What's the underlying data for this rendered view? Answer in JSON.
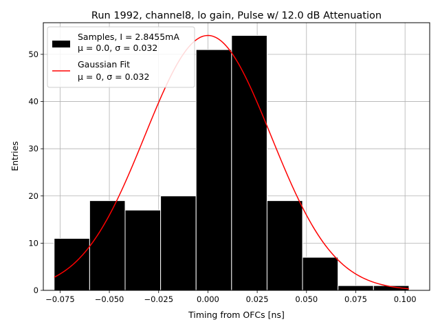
{
  "chart_data": {
    "type": "bar",
    "title": "Run 1992, channel8, lo gain, Pulse w/ 12.0 dB Attenuation",
    "xlabel": "Timing from OFCs [ns]",
    "ylabel": "Entries",
    "xlim": [
      -0.0835,
      0.1125
    ],
    "ylim": [
      0,
      56.7
    ],
    "grid": true,
    "legend_position": "top-left",
    "bin_edges": [
      -0.078,
      -0.06,
      -0.042,
      -0.024,
      -0.006,
      0.012,
      0.03,
      0.048,
      0.066,
      0.084,
      0.102
    ],
    "series": [
      {
        "name": "Samples, I = 2.8455mA",
        "name_line2": "μ = 0.0, σ = 0.032",
        "type": "histogram",
        "values": [
          11,
          19,
          17,
          20,
          51,
          54,
          19,
          7,
          1,
          1
        ],
        "color": "#000000"
      },
      {
        "name": "Gaussian Fit",
        "name_line2": "μ = 0, σ = 0.032",
        "type": "line",
        "mu": 0,
        "sigma": 0.032,
        "peak": 54,
        "color": "#ff0000"
      }
    ],
    "xticks": [
      "−0.075",
      "−0.050",
      "−0.025",
      "0.000",
      "0.025",
      "0.050",
      "0.075",
      "0.100"
    ],
    "xtick_values": [
      -0.075,
      -0.05,
      -0.025,
      0,
      0.025,
      0.05,
      0.075,
      0.1
    ],
    "yticks": [
      "0",
      "10",
      "20",
      "30",
      "40",
      "50"
    ],
    "ytick_values": [
      0,
      10,
      20,
      30,
      40,
      50
    ]
  }
}
